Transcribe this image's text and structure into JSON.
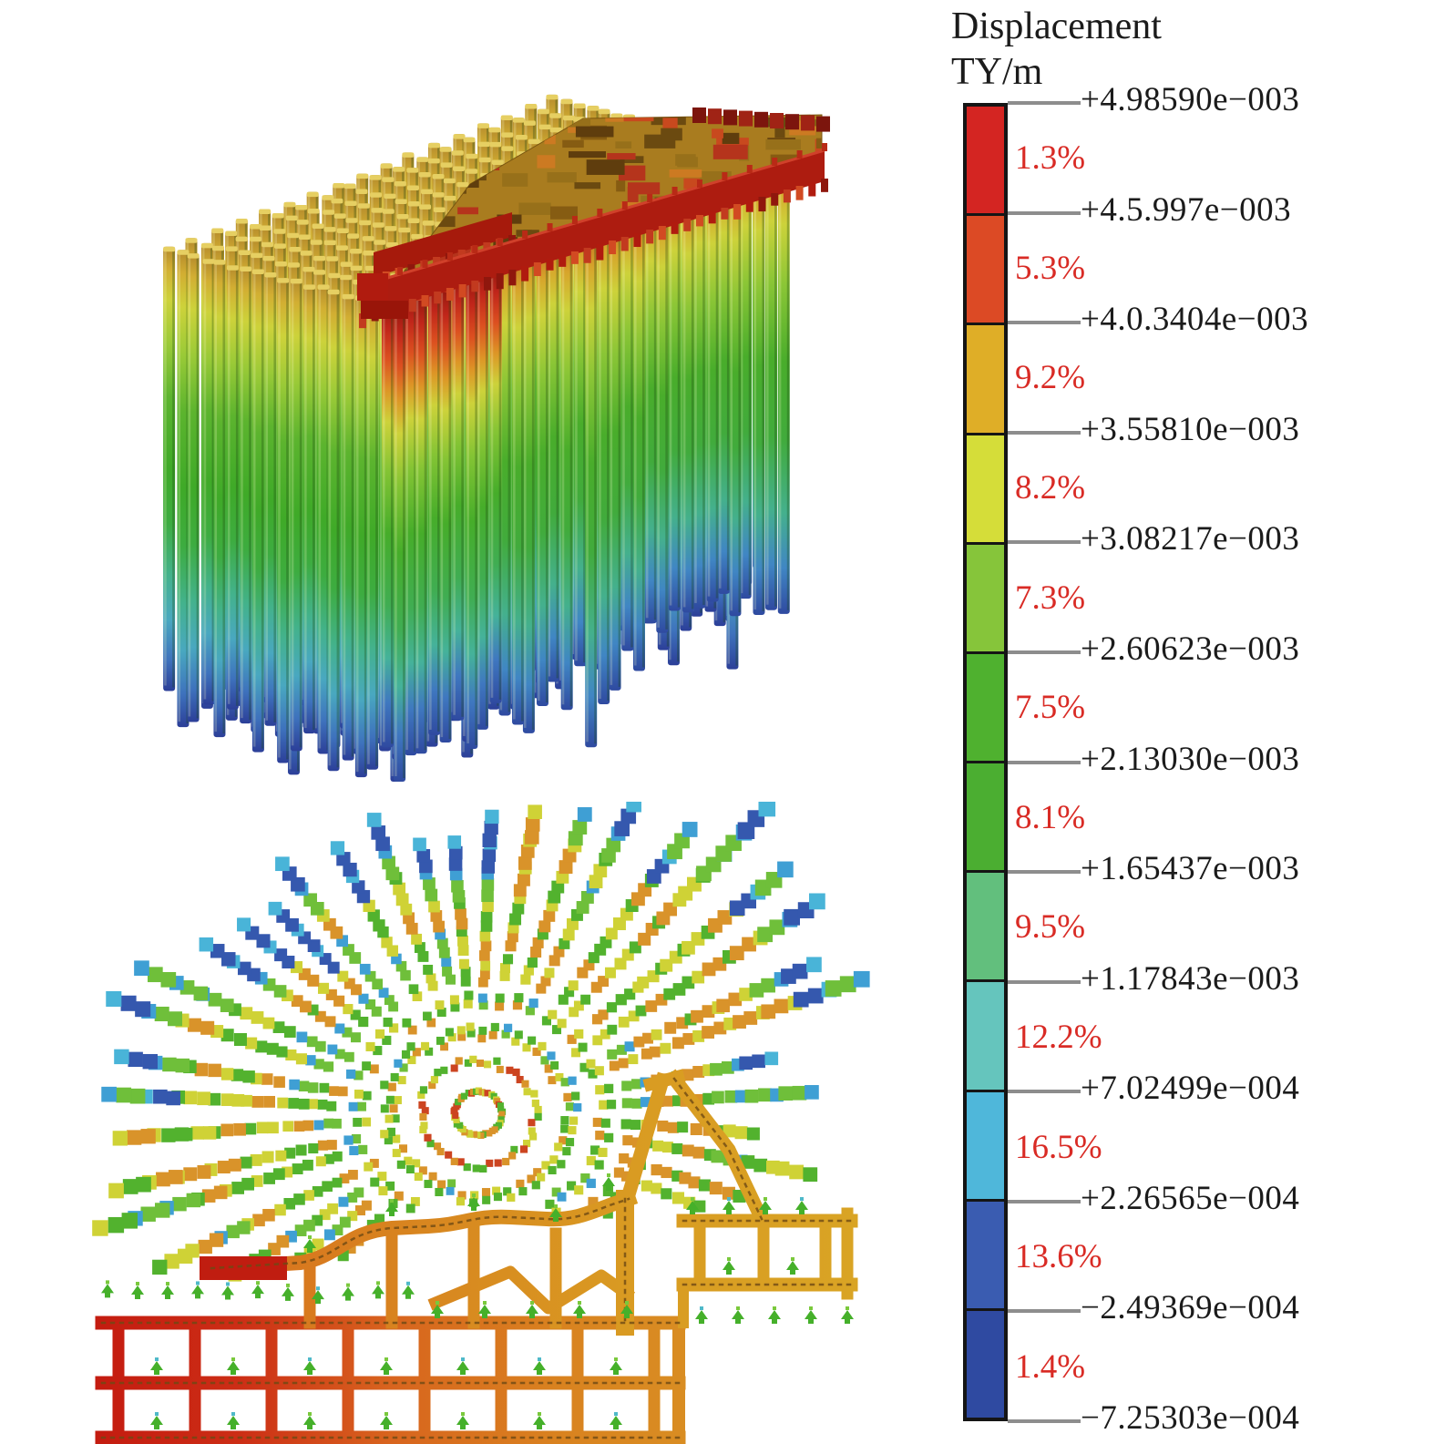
{
  "figure": {
    "background": "#ffffff",
    "legend": {
      "title_line1": "Displacement",
      "title_line2": "TY/m",
      "text_color": "#1b1b1b",
      "percent_color": "#d92b25",
      "tick_color": "#8d8d8d",
      "bar_border_color": "#151515",
      "ticks": [
        "+4.98590e−003",
        "+4.5.997e−003",
        "+4.0.3404e−003",
        "+3.55810e−003",
        "+3.08217e−003",
        "+2.60623e−003",
        "+2.13030e−003",
        "+1.65437e−003",
        "+1.17843e−003",
        "+7.02499e−004",
        "+2.26565e−004",
        "−2.49369e−004",
        "−7.25303e−004"
      ],
      "bands": [
        {
          "color": "#d42522",
          "percent": "1.3%"
        },
        {
          "color": "#dc4a25",
          "percent": "5.3%"
        },
        {
          "color": "#dfae27",
          "percent": "9.2%"
        },
        {
          "color": "#d5dd39",
          "percent": "8.2%"
        },
        {
          "color": "#86c53a",
          "percent": "7.3%"
        },
        {
          "color": "#4fb12f",
          "percent": "7.5%"
        },
        {
          "color": "#4bae31",
          "percent": "8.1%"
        },
        {
          "color": "#62bf7d",
          "percent": "9.5%"
        },
        {
          "color": "#65c5bd",
          "percent": "12.2%"
        },
        {
          "color": "#4fb7da",
          "percent": "16.5%"
        },
        {
          "color": "#3a5cb1",
          "percent": "13.6%"
        },
        {
          "color": "#2f4aa1",
          "percent": "1.4%"
        }
      ]
    },
    "views": [
      {
        "name": "pile-group-3d",
        "description": "3D iso view of pile group with raft, colored by vertical displacement",
        "pile_palette": [
          "#b3882b",
          "#cdd23a",
          "#5cb42e",
          "#3faa28",
          "#43b28c",
          "#49a8c0",
          "#2c3f98"
        ],
        "raft_colors": [
          "#a97c1f",
          "#6b4a10",
          "#b5341c",
          "#ad1c10"
        ]
      },
      {
        "name": "radial-vector-field",
        "description": "Plan/section view with radial displacement vectors and tunnel frame",
        "vector_palette": [
          "#d9932a",
          "#cfd236",
          "#52b22e",
          "#6fbf3a",
          "#49b4d8",
          "#3558ae",
          "#cc4420"
        ],
        "frame_colors": [
          "#c41c10",
          "#d8641e",
          "#d99b22"
        ],
        "ground_arrow_color": "#45b02a"
      }
    ]
  },
  "chart_data": {
    "type": "heatmap",
    "title": "Displacement",
    "unit": "TY/m",
    "legend_position": "right",
    "scale_tick_labels": [
      "+4.98590e−003",
      "+4.5.997e−003",
      "+4.0.3404e−003",
      "+3.55810e−003",
      "+3.08217e−003",
      "+2.60623e−003",
      "+2.13030e−003",
      "+1.65437e−003",
      "+1.17843e−003",
      "+7.02499e−004",
      "+2.26565e−004",
      "−2.49369e−004",
      "−7.25303e−004"
    ],
    "scale_tick_values": [
      0.0049859,
      0.0045997,
      0.00403404,
      0.0035581,
      0.00308217,
      0.00260623,
      0.0021303,
      0.00165437,
      0.00117843,
      0.000702499,
      0.000226565,
      -0.000249369,
      -0.000725303
    ],
    "bins": [
      {
        "color": "#d42522",
        "share_percent": 1.3
      },
      {
        "color": "#dc4a25",
        "share_percent": 5.3
      },
      {
        "color": "#dfae27",
        "share_percent": 9.2
      },
      {
        "color": "#d5dd39",
        "share_percent": 8.2
      },
      {
        "color": "#86c53a",
        "share_percent": 7.3
      },
      {
        "color": "#4fb12f",
        "share_percent": 7.5
      },
      {
        "color": "#4bae31",
        "share_percent": 8.1
      },
      {
        "color": "#62bf7d",
        "share_percent": 9.5
      },
      {
        "color": "#65c5bd",
        "share_percent": 12.2
      },
      {
        "color": "#4fb7da",
        "share_percent": 16.5
      },
      {
        "color": "#3a5cb1",
        "share_percent": 13.6
      },
      {
        "color": "#2f4aa1",
        "share_percent": 1.4
      }
    ],
    "subplots": [
      "3D pile-group displacement contours with pile raft (top)",
      "radial displacement vector field over buried frame structure (bottom)"
    ]
  }
}
